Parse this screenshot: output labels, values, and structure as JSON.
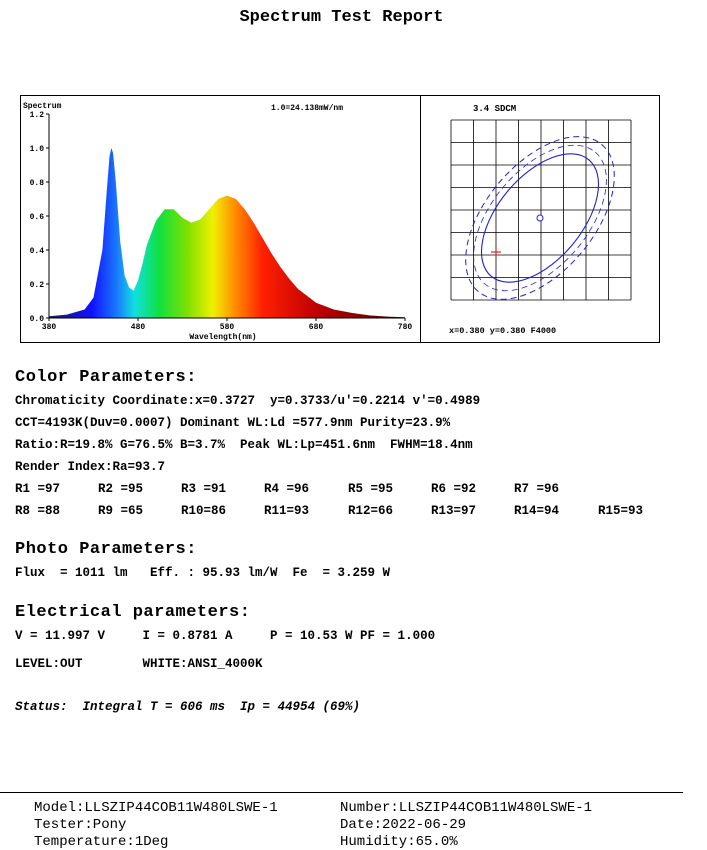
{
  "title": "Spectrum Test Report",
  "chart_data": [
    {
      "type": "area",
      "title": "Spectrum",
      "annotation": "1.0=24.138mW/nm",
      "xlabel": "Wavelength(nm)",
      "ylabel": "",
      "xlim": [
        380,
        780
      ],
      "ylim": [
        0,
        1.2
      ],
      "xticks": [
        380,
        480,
        580,
        680,
        780
      ],
      "yticks": [
        "0.0",
        "0.2",
        "0.4",
        "0.6",
        "0.8",
        "1.0",
        "1.2"
      ],
      "x": [
        380,
        400,
        420,
        430,
        440,
        445,
        448,
        450,
        452,
        455,
        460,
        465,
        470,
        475,
        480,
        485,
        490,
        500,
        510,
        520,
        530,
        540,
        550,
        560,
        570,
        580,
        590,
        600,
        610,
        620,
        630,
        640,
        650,
        660,
        670,
        680,
        690,
        700,
        720,
        740,
        760,
        780
      ],
      "values": [
        0.01,
        0.02,
        0.05,
        0.12,
        0.4,
        0.75,
        0.95,
        1.0,
        0.97,
        0.8,
        0.45,
        0.25,
        0.18,
        0.16,
        0.22,
        0.32,
        0.43,
        0.57,
        0.64,
        0.64,
        0.59,
        0.56,
        0.58,
        0.64,
        0.7,
        0.72,
        0.7,
        0.64,
        0.56,
        0.47,
        0.38,
        0.3,
        0.23,
        0.17,
        0.13,
        0.09,
        0.07,
        0.05,
        0.03,
        0.015,
        0.008,
        0.004
      ]
    },
    {
      "type": "scatter",
      "title": "3.4 SDCM",
      "grid": true,
      "center_label": "x=0.380 y=0.380 F4000",
      "center": [
        0.38,
        0.38
      ],
      "measured": [
        0.3727,
        0.3733
      ]
    }
  ],
  "color_params": {
    "heading": "Color Parameters:",
    "lines": [
      "Chromaticity Coordinate:x=0.3727  y=0.3733/u'=0.2214 v'=0.4989",
      "CCT=4193K(Duv=0.0007) Dominant WL:Ld =577.9nm Purity=23.9%",
      "Ratio:R=19.8% G=76.5% B=3.7%  Peak WL:Lp=451.6nm  FWHM=18.4nm",
      "Render Index:Ra=93.7"
    ],
    "r_row1": [
      "R1 =97",
      "R2 =95",
      "R3 =91",
      "R4 =96",
      "R5 =95",
      "R6 =92",
      "R7 =96"
    ],
    "r_row2": [
      "R8 =88",
      "R9 =65",
      "R10=86",
      "R11=93",
      "R12=66",
      "R13=97",
      "R14=94",
      "R15=93"
    ]
  },
  "photo_params": {
    "heading": "Photo Parameters:",
    "line": "Flux  = 1011 lm   Eff. : 95.93 lm/W  Fe  = 3.259 W"
  },
  "electrical_params": {
    "heading": "Electrical parameters:",
    "line1": "V = 11.997 V     I = 0.8781 A     P = 10.53 W PF = 1.000",
    "line2": "LEVEL:OUT        WHITE:ANSI_4000K"
  },
  "status": "Status:  Integral T = 606 ms  Ip = 44954 (69%)",
  "footer": {
    "model": "Model:LLSZIP44COB11W480LSWE-1",
    "number": "Number:LLSZIP44COB11W480LSWE-1",
    "tester": "Tester:Pony",
    "date": "Date:2022-06-29",
    "temperature": "Temperature:1Deg",
    "humidity": "Humidity:65.0%"
  }
}
